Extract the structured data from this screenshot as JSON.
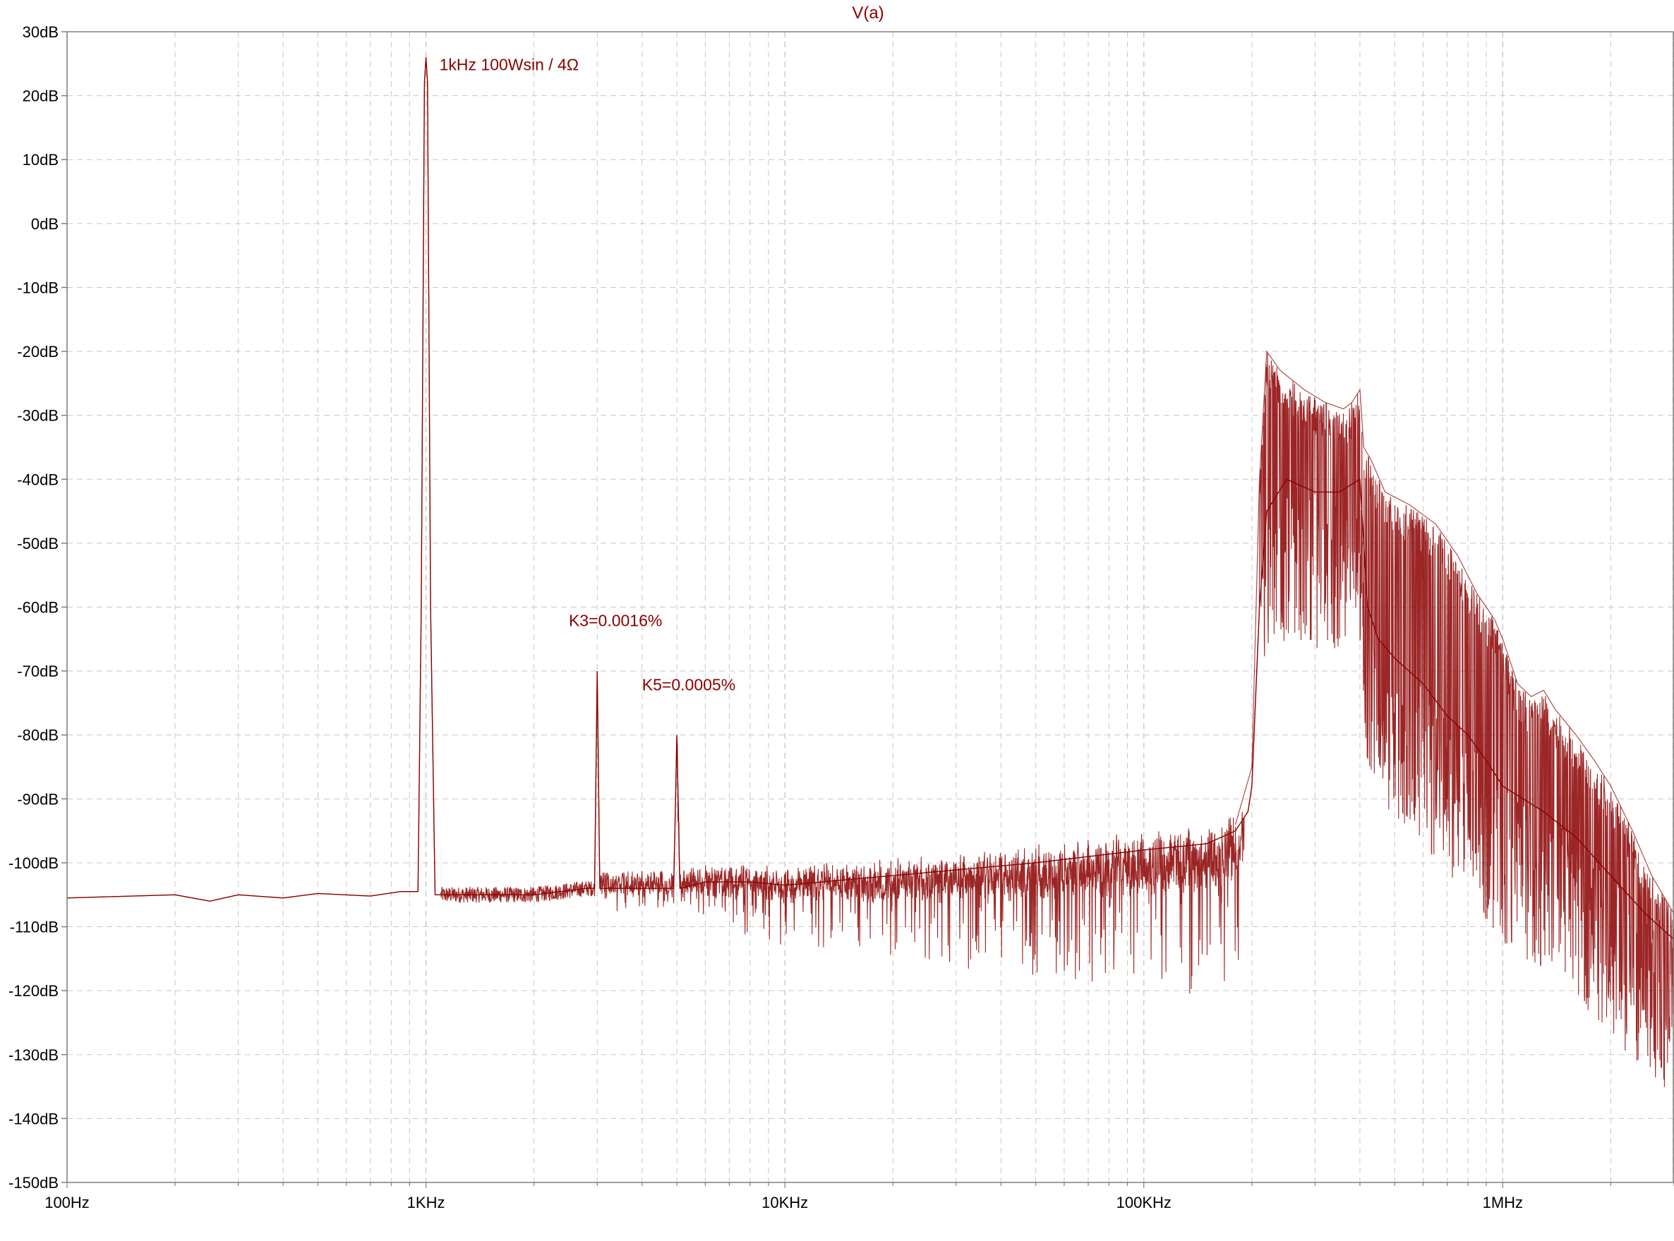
{
  "colors": {
    "trace": "#8b0000",
    "grid": "#c8c8c8",
    "axis": "#7f7f7f",
    "background": "#ffffff"
  },
  "chart_data": {
    "type": "line",
    "title": "V(a)",
    "xscale": "log",
    "xlim": [
      100,
      3000000
    ],
    "ylim": [
      -150,
      30
    ],
    "grid": true,
    "x_ticks": [
      {
        "value": 100,
        "label": "100Hz"
      },
      {
        "value": 1000,
        "label": "1KHz"
      },
      {
        "value": 10000,
        "label": "10KHz"
      },
      {
        "value": 100000,
        "label": "100KHz"
      },
      {
        "value": 1000000,
        "label": "1MHz"
      }
    ],
    "y_ticks": [
      {
        "value": 30,
        "label": "30dB"
      },
      {
        "value": 20,
        "label": "20dB"
      },
      {
        "value": 10,
        "label": "10dB"
      },
      {
        "value": 0,
        "label": "0dB"
      },
      {
        "value": -10,
        "label": "-10dB"
      },
      {
        "value": -20,
        "label": "-20dB"
      },
      {
        "value": -30,
        "label": "-30dB"
      },
      {
        "value": -40,
        "label": "-40dB"
      },
      {
        "value": -50,
        "label": "-50dB"
      },
      {
        "value": -60,
        "label": "-60dB"
      },
      {
        "value": -70,
        "label": "-70dB"
      },
      {
        "value": -80,
        "label": "-80dB"
      },
      {
        "value": -90,
        "label": "-90dB"
      },
      {
        "value": -100,
        "label": "-100dB"
      },
      {
        "value": -110,
        "label": "-110dB"
      },
      {
        "value": -120,
        "label": "-120dB"
      },
      {
        "value": -130,
        "label": "-130dB"
      },
      {
        "value": -140,
        "label": "-140dB"
      },
      {
        "value": -150,
        "label": "-150dB"
      }
    ],
    "series": [
      {
        "name": "V(a)",
        "points": [
          [
            100,
            -105.5
          ],
          [
            200,
            -105
          ],
          [
            250,
            -106
          ],
          [
            300,
            -105
          ],
          [
            400,
            -105.5
          ],
          [
            500,
            -104.8
          ],
          [
            700,
            -105.2
          ],
          [
            850,
            -104.5
          ],
          [
            950,
            -104.5
          ],
          [
            970,
            -60
          ],
          [
            990,
            22
          ],
          [
            1000,
            26
          ],
          [
            1010,
            22
          ],
          [
            1030,
            -60
          ],
          [
            1060,
            -105
          ],
          [
            1500,
            -105
          ],
          [
            2000,
            -105
          ],
          [
            2800,
            -104
          ],
          [
            2950,
            -104
          ],
          [
            3000,
            -70
          ],
          [
            3050,
            -104
          ],
          [
            4000,
            -104
          ],
          [
            4900,
            -104
          ],
          [
            5000,
            -80
          ],
          [
            5100,
            -104
          ],
          [
            6000,
            -103
          ],
          [
            8000,
            -103
          ],
          [
            10000,
            -103.5
          ],
          [
            20000,
            -102
          ],
          [
            50000,
            -100
          ],
          [
            100000,
            -98
          ],
          [
            150000,
            -97
          ],
          [
            180000,
            -95
          ],
          [
            195000,
            -92
          ],
          [
            200000,
            -88
          ],
          [
            210000,
            -60
          ],
          [
            220000,
            -45
          ],
          [
            250000,
            -40
          ],
          [
            300000,
            -42
          ],
          [
            350000,
            -42
          ],
          [
            400000,
            -40
          ],
          [
            420000,
            -60
          ],
          [
            450000,
            -65
          ],
          [
            500000,
            -68
          ],
          [
            600000,
            -72
          ],
          [
            700000,
            -77
          ],
          [
            800000,
            -80
          ],
          [
            900000,
            -84
          ],
          [
            1000000,
            -88
          ],
          [
            1300000,
            -92
          ],
          [
            1600000,
            -96
          ],
          [
            2000000,
            -102
          ],
          [
            2500000,
            -108
          ],
          [
            3000000,
            -112
          ]
        ],
        "upper_envelope": [
          [
            180000,
            -94
          ],
          [
            200000,
            -85
          ],
          [
            210000,
            -40
          ],
          [
            220000,
            -20
          ],
          [
            240000,
            -23
          ],
          [
            280000,
            -26
          ],
          [
            320000,
            -28
          ],
          [
            360000,
            -29
          ],
          [
            380000,
            -28
          ],
          [
            400000,
            -26
          ],
          [
            410000,
            -35
          ],
          [
            430000,
            -37
          ],
          [
            470000,
            -42
          ],
          [
            550000,
            -44
          ],
          [
            650000,
            -47
          ],
          [
            750000,
            -52
          ],
          [
            850000,
            -58
          ],
          [
            900000,
            -60
          ],
          [
            950000,
            -62
          ],
          [
            1000000,
            -65
          ],
          [
            1100000,
            -72
          ],
          [
            1200000,
            -74
          ],
          [
            1300000,
            -73
          ],
          [
            1400000,
            -76
          ],
          [
            1600000,
            -80
          ],
          [
            1800000,
            -84
          ],
          [
            2000000,
            -88
          ],
          [
            2300000,
            -95
          ],
          [
            2600000,
            -102
          ],
          [
            3000000,
            -108
          ]
        ]
      }
    ],
    "annotations": [
      {
        "text": "1kHz  100Wsin / 4Ω",
        "x": 1090,
        "y": 24
      },
      {
        "text": "K3=0.0016%",
        "x": 2500,
        "y": -63
      },
      {
        "text": "K5=0.0005%",
        "x": 4000,
        "y": -73
      }
    ]
  }
}
